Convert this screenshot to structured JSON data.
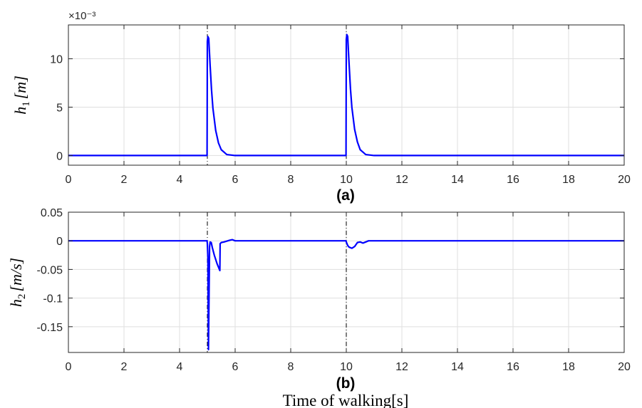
{
  "chart_data": [
    {
      "type": "line",
      "panel_label": "(a)",
      "ylabel": "h_1 [m]",
      "ylabel_main": "h",
      "ylabel_sub": "1",
      "ylabel_unit": "[m]",
      "y_exponent_label": "×10⁻³",
      "xlim": [
        0,
        20
      ],
      "ylim": [
        -0.001,
        0.0135
      ],
      "x_ticks": [
        0,
        2,
        4,
        6,
        8,
        10,
        12,
        14,
        16,
        18,
        20
      ],
      "x_tick_labels": [
        "0",
        "2",
        "4",
        "6",
        "8",
        "10",
        "12",
        "14",
        "16",
        "18",
        "20"
      ],
      "y_ticks": [
        0,
        0.005,
        0.01
      ],
      "y_tick_labels": [
        "0",
        "5",
        "10"
      ],
      "grid": true,
      "vlines": [
        5,
        10
      ],
      "series": [
        {
          "color": "#0000ff",
          "x": [
            0,
            4.99,
            5.0,
            5.02,
            5.05,
            5.1,
            5.15,
            5.2,
            5.3,
            5.4,
            5.5,
            5.7,
            6.0,
            9.99,
            10.0,
            10.02,
            10.05,
            10.1,
            10.15,
            10.2,
            10.3,
            10.4,
            10.5,
            10.7,
            11.0,
            20
          ],
          "y": [
            0,
            0,
            0.0118,
            0.0123,
            0.0121,
            0.0093,
            0.0068,
            0.0049,
            0.0026,
            0.0013,
            0.0006,
            0.0001,
            0,
            0,
            0.012,
            0.0125,
            0.0123,
            0.0095,
            0.0069,
            0.005,
            0.0027,
            0.0014,
            0.0006,
            0.0001,
            0,
            0
          ]
        }
      ]
    },
    {
      "type": "line",
      "panel_label": "(b)",
      "ylabel": "h_2 [m/s]",
      "ylabel_main": "h",
      "ylabel_sub": "2",
      "ylabel_unit": "[m/s]",
      "xlabel": "Time of walking[s]",
      "xlim": [
        0,
        20
      ],
      "ylim": [
        -0.195,
        0.05
      ],
      "x_ticks": [
        0,
        2,
        4,
        6,
        8,
        10,
        12,
        14,
        16,
        18,
        20
      ],
      "x_tick_labels": [
        "0",
        "2",
        "4",
        "6",
        "8",
        "10",
        "12",
        "14",
        "16",
        "18",
        "20"
      ],
      "y_ticks": [
        0.05,
        0,
        -0.05,
        -0.1,
        -0.15
      ],
      "y_tick_labels": [
        "0.05",
        "0",
        "-0.05",
        "-0.1",
        "-0.15"
      ],
      "grid": true,
      "vlines": [
        5,
        10
      ],
      "series": [
        {
          "color": "#0000ff",
          "x": [
            0,
            4.99,
            5.0,
            5.02,
            5.04,
            5.06,
            5.08,
            5.1,
            5.14,
            5.18,
            5.25,
            5.35,
            5.45,
            5.46,
            5.5,
            5.6,
            5.8,
            5.9,
            6.0,
            6.2,
            9.99,
            10.0,
            10.05,
            10.1,
            10.2,
            10.3,
            10.4,
            10.5,
            10.6,
            10.7,
            10.8,
            11.0,
            20
          ],
          "y": [
            0,
            0,
            -0.005,
            -0.03,
            -0.19,
            -0.1,
            -0.01,
            -0.002,
            -0.003,
            -0.012,
            -0.025,
            -0.04,
            -0.052,
            -0.005,
            -0.003,
            -0.002,
            0.001,
            0.002,
            0,
            0,
            0,
            -0.002,
            -0.008,
            -0.011,
            -0.013,
            -0.01,
            -0.003,
            -0.002,
            -0.004,
            -0.002,
            0,
            0,
            0
          ]
        }
      ]
    }
  ]
}
